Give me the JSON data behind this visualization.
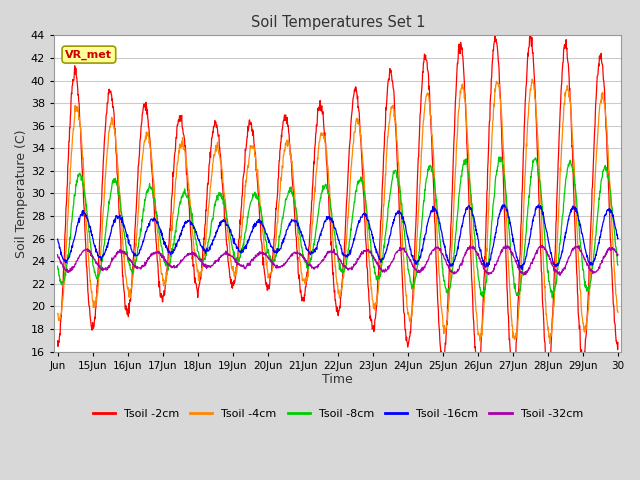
{
  "title": "Soil Temperatures Set 1",
  "xlabel": "Time",
  "ylabel": "Soil Temperature (C)",
  "ylim": [
    16,
    44
  ],
  "yticks": [
    16,
    18,
    20,
    22,
    24,
    26,
    28,
    30,
    32,
    34,
    36,
    38,
    40,
    42,
    44
  ],
  "annotation_text": "VR_met",
  "series": [
    {
      "label": "Tsoil -2cm",
      "color": "#ff0000"
    },
    {
      "label": "Tsoil -4cm",
      "color": "#ff8800"
    },
    {
      "label": "Tsoil -8cm",
      "color": "#00cc00"
    },
    {
      "label": "Tsoil -16cm",
      "color": "#0000ff"
    },
    {
      "label": "Tsoil -32cm",
      "color": "#aa00aa"
    }
  ],
  "x_tick_labels": [
    "Jun",
    "15Jun",
    "16Jun",
    "17Jun",
    "18Jun",
    "19Jun",
    "20Jun",
    "21Jun",
    "22Jun",
    "23Jun",
    "24Jun",
    "25Jun",
    "26Jun",
    "27Jun",
    "28Jun",
    "29Jun",
    "30"
  ],
  "bg_color": "#d8d8d8",
  "plot_bg": "#ffffff",
  "grid_color": "#cccccc"
}
